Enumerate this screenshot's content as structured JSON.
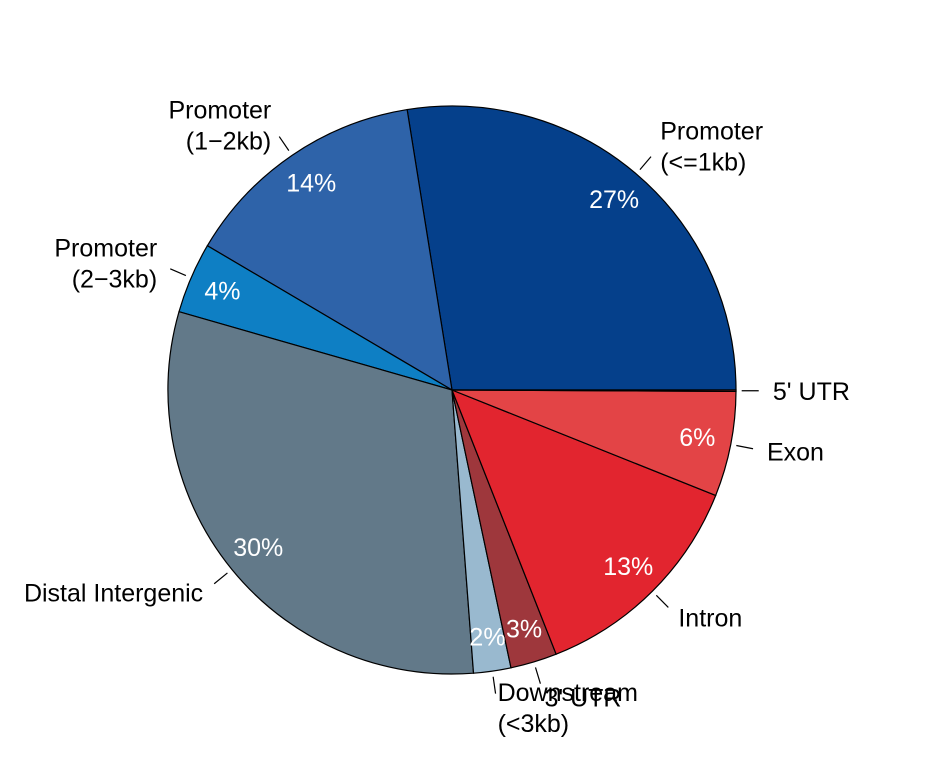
{
  "chart_data": {
    "type": "pie",
    "title": "",
    "slices": [
      {
        "name": "Promoter (<=1kb)",
        "label_lines": [
          "Promoter",
          "(<=1kb)"
        ],
        "value": 27.36,
        "pct_label": "27%",
        "color": "#05408B"
      },
      {
        "name": "Promoter (1-2kb)",
        "label_lines": [
          "Promoter",
          "(1−2kb)"
        ],
        "value": 13.91,
        "pct_label": "14%",
        "color": "#2E63A9"
      },
      {
        "name": "Promoter (2-3kb)",
        "label_lines": [
          "Promoter",
          "(2−3kb)"
        ],
        "value": 4.01,
        "pct_label": "4%",
        "color": "#0E7FC4"
      },
      {
        "name": "Distal Intergenic",
        "label_lines": [
          "Distal Intergenic"
        ],
        "value": 30.47,
        "pct_label": "30%",
        "color": "#627989"
      },
      {
        "name": "Downstream (<3kb)",
        "label_lines": [
          "Downstream",
          "(<3kb)"
        ],
        "value": 2.11,
        "pct_label": "2%",
        "color": "#99B9CF"
      },
      {
        "name": "3' UTR",
        "label_lines": [
          "3' UTR"
        ],
        "value": 2.63,
        "pct_label": "3%",
        "color": "#9E373C"
      },
      {
        "name": "Intron",
        "label_lines": [
          "Intron"
        ],
        "value": 12.89,
        "pct_label": "13%",
        "color": "#E2252F"
      },
      {
        "name": "Exon",
        "label_lines": [
          "Exon"
        ],
        "value": 5.94,
        "pct_label": "6%",
        "color": "#E34446"
      },
      {
        "name": "5' UTR",
        "label_lines": [
          "5' UTR"
        ],
        "value": 0.08,
        "pct_label": "",
        "color": "#C23A3D"
      }
    ]
  }
}
